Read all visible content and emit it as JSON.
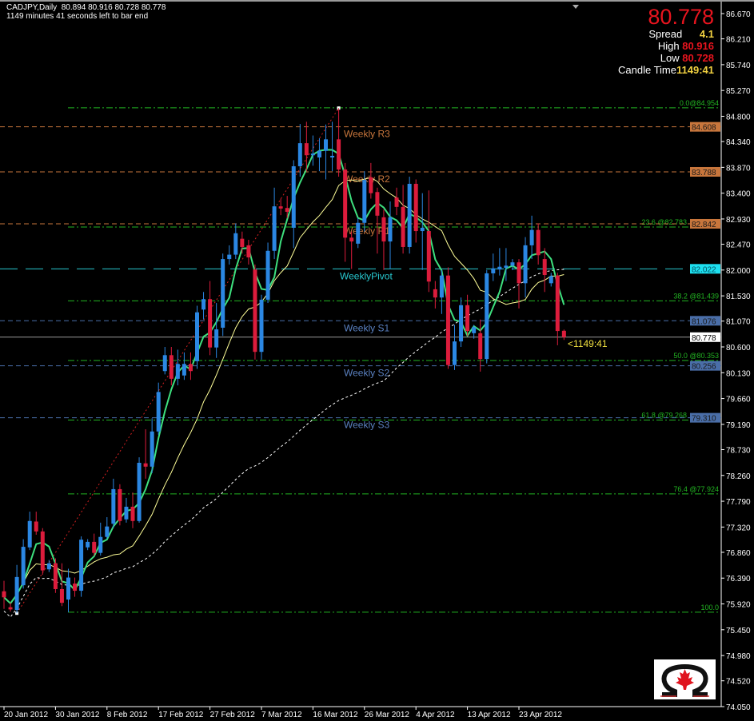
{
  "header": {
    "symbol_line": "CADJPY,Daily  80.894 80.916 80.728 80.778",
    "timer_line": "1149 minutes 41 seconds left to bar end"
  },
  "info_panel": {
    "price": "80.778",
    "spread_label": "Spread",
    "spread_value": "4.1",
    "high_label": "High",
    "high_value": "80.916",
    "low_label": "Low",
    "low_value": "80.728",
    "candle_time_label": "Candle Time",
    "candle_time_value": "1149:41"
  },
  "countdown_label": "<1149:41",
  "colors": {
    "bull": "#2b87e3",
    "bear": "#dc1c3c",
    "ma_fast": "#3ee07e",
    "ma_mid": "#ffff99",
    "ma_slow": "#ffffff",
    "fib": "#22b422",
    "resistance": "#c8763c",
    "pivot": "#28c8d0",
    "support": "#4a6ea8",
    "price_line": "#9a9a9a"
  },
  "logo": {
    "icon": "omega-maple-leaf-logo"
  },
  "chart_data": {
    "type": "candlestick",
    "title": "CADJPY,Daily",
    "ylim": [
      74.05,
      86.67
    ],
    "y_ticks": [
      "86.670",
      "86.210",
      "85.740",
      "85.270",
      "84.800",
      "84.340",
      "83.870",
      "83.400",
      "82.930",
      "82.470",
      "82.000",
      "81.530",
      "81.070",
      "80.600",
      "80.130",
      "79.660",
      "79.190",
      "78.730",
      "78.260",
      "77.790",
      "77.320",
      "76.860",
      "76.390",
      "75.920",
      "75.450",
      "74.980",
      "74.520",
      "74.050"
    ],
    "x_ticks": [
      {
        "label": "20 Jan 2012",
        "bar": 0
      },
      {
        "label": "30 Jan 2012",
        "bar": 8
      },
      {
        "label": "8 Feb 2012",
        "bar": 16
      },
      {
        "label": "17 Feb 2012",
        "bar": 24
      },
      {
        "label": "27 Feb 2012",
        "bar": 32
      },
      {
        "label": "7 Mar 2012",
        "bar": 40
      },
      {
        "label": "16 Mar 2012",
        "bar": 48
      },
      {
        "label": "26 Mar 2012",
        "bar": 56
      },
      {
        "label": "4 Apr 2012",
        "bar": 64
      },
      {
        "label": "13 Apr 2012",
        "bar": 72
      },
      {
        "label": "23 Apr 2012",
        "bar": 80
      }
    ],
    "ohlc": [
      [
        76.15,
        76.34,
        75.83,
        76.04
      ],
      [
        75.86,
        75.95,
        75.78,
        75.82
      ],
      [
        75.81,
        76.63,
        75.75,
        76.41
      ],
      [
        76.26,
        77.1,
        76.2,
        76.96
      ],
      [
        76.95,
        77.6,
        76.9,
        77.43
      ],
      [
        77.42,
        77.6,
        77.18,
        77.24
      ],
      [
        77.24,
        77.3,
        76.45,
        76.53
      ],
      [
        76.55,
        76.72,
        76.5,
        76.66
      ],
      [
        76.66,
        76.75,
        76.12,
        76.19
      ],
      [
        76.19,
        76.66,
        75.88,
        75.94
      ],
      [
        76.0,
        76.56,
        75.77,
        76.4
      ],
      [
        76.29,
        76.4,
        76.05,
        76.16
      ],
      [
        76.16,
        77.15,
        76.05,
        77.09
      ],
      [
        76.95,
        77.1,
        76.9,
        77.05
      ],
      [
        77.05,
        77.2,
        76.8,
        76.85
      ],
      [
        76.85,
        77.4,
        76.8,
        77.14
      ],
      [
        77.14,
        77.5,
        77.1,
        77.33
      ],
      [
        77.38,
        78.2,
        77.3,
        78.01
      ],
      [
        78.01,
        78.1,
        77.35,
        77.43
      ],
      [
        77.46,
        77.85,
        77.4,
        77.69
      ],
      [
        77.69,
        77.95,
        77.3,
        77.43
      ],
      [
        77.43,
        78.59,
        77.4,
        78.49
      ],
      [
        78.48,
        79.1,
        78.2,
        78.42
      ],
      [
        78.42,
        79.3,
        78.3,
        79.06
      ],
      [
        79.06,
        79.95,
        79.0,
        79.78
      ],
      [
        80.16,
        80.6,
        80.1,
        80.45
      ],
      [
        80.45,
        80.6,
        79.9,
        80.02
      ],
      [
        80.02,
        80.55,
        79.9,
        80.29
      ],
      [
        80.08,
        80.5,
        80.0,
        80.29
      ],
      [
        80.29,
        80.5,
        80.0,
        80.16
      ],
      [
        80.34,
        81.35,
        80.2,
        81.23
      ],
      [
        81.28,
        81.6,
        81.1,
        81.47
      ],
      [
        81.47,
        81.8,
        80.45,
        80.59
      ],
      [
        80.59,
        81.4,
        80.4,
        80.92
      ],
      [
        80.95,
        82.3,
        80.8,
        82.2
      ],
      [
        82.2,
        82.45,
        82.1,
        82.28
      ],
      [
        82.28,
        82.85,
        82.2,
        82.67
      ],
      [
        82.57,
        82.7,
        82.3,
        82.42
      ],
      [
        82.45,
        82.55,
        82.1,
        82.23
      ],
      [
        82.01,
        82.1,
        80.37,
        80.51
      ],
      [
        80.51,
        81.55,
        80.37,
        81.46
      ],
      [
        81.46,
        82.5,
        81.4,
        82.35
      ],
      [
        82.35,
        83.5,
        82.2,
        83.16
      ],
      [
        83.16,
        83.3,
        83.0,
        83.12
      ],
      [
        83.13,
        83.35,
        82.95,
        83.06
      ],
      [
        82.77,
        84.0,
        82.4,
        83.89
      ],
      [
        83.89,
        84.66,
        83.7,
        84.31
      ],
      [
        84.31,
        84.7,
        83.8,
        84.09
      ],
      [
        84.09,
        84.45,
        83.9,
        84.12
      ],
      [
        84.05,
        84.4,
        83.8,
        84.17
      ],
      [
        84.17,
        84.65,
        83.65,
        84.38
      ],
      [
        84.05,
        84.7,
        83.8,
        84.08
      ],
      [
        84.38,
        84.95,
        83.7,
        83.83
      ],
      [
        83.83,
        83.95,
        82.15,
        82.59
      ],
      [
        82.59,
        82.7,
        82.02,
        82.52
      ],
      [
        82.48,
        82.95,
        82.4,
        82.86
      ],
      [
        82.86,
        83.8,
        82.7,
        83.64
      ],
      [
        83.69,
        83.95,
        83.3,
        83.4
      ],
      [
        83.42,
        83.5,
        82.3,
        82.99
      ],
      [
        82.96,
        83.1,
        82.0,
        82.52
      ],
      [
        82.52,
        83.25,
        82.02,
        82.96
      ],
      [
        83.32,
        83.5,
        83.0,
        83.15
      ],
      [
        83.15,
        83.55,
        82.3,
        82.42
      ],
      [
        82.42,
        83.7,
        82.3,
        83.57
      ],
      [
        83.57,
        83.65,
        82.5,
        82.71
      ],
      [
        82.71,
        83.4,
        82.0,
        82.77
      ],
      [
        82.71,
        83.45,
        81.6,
        81.79
      ],
      [
        81.65,
        81.8,
        81.3,
        81.5
      ],
      [
        81.5,
        82.0,
        81.2,
        81.9
      ],
      [
        81.9,
        82.05,
        80.2,
        80.27
      ],
      [
        80.27,
        81.0,
        80.18,
        80.7
      ],
      [
        80.7,
        81.5,
        80.6,
        81.36
      ],
      [
        81.36,
        81.55,
        80.8,
        80.89
      ],
      [
        80.85,
        81.0,
        80.75,
        80.96
      ],
      [
        80.85,
        81.1,
        80.15,
        80.38
      ],
      [
        80.38,
        82.0,
        80.3,
        81.94
      ],
      [
        81.94,
        82.3,
        81.8,
        82.03
      ],
      [
        82.01,
        82.4,
        81.9,
        82.06
      ],
      [
        82.04,
        82.4,
        81.8,
        82.08
      ],
      [
        82.08,
        82.2,
        82.0,
        82.14
      ],
      [
        82.14,
        82.2,
        81.3,
        81.76
      ],
      [
        81.76,
        82.6,
        81.5,
        82.45
      ],
      [
        82.45,
        82.99,
        82.2,
        82.73
      ],
      [
        82.73,
        82.85,
        82.1,
        82.27
      ],
      [
        82.2,
        82.4,
        81.6,
        81.91
      ],
      [
        81.76,
        81.95,
        81.7,
        81.89
      ],
      [
        81.9,
        81.95,
        80.63,
        80.89
      ],
      [
        80.894,
        80.916,
        80.728,
        80.778
      ]
    ],
    "pivot_levels": [
      {
        "name": "Weekly R3",
        "label": "Weekly R3",
        "value": 84.608,
        "axis_label": "84.608",
        "kind": "resistance"
      },
      {
        "name": "Weekly R2",
        "label": "Weekly R2",
        "value": 83.788,
        "axis_label": "83.788",
        "kind": "resistance"
      },
      {
        "name": "Weekly R1",
        "label": "Weekly R1",
        "value": 82.842,
        "axis_label": "82.842",
        "kind": "resistance"
      },
      {
        "name": "Weekly Pivot",
        "label": "WeeklyPivot",
        "value": 82.022,
        "axis_label": "82.022",
        "kind": "pivot"
      },
      {
        "name": "Weekly S1",
        "label": "Weekly S1",
        "value": 81.076,
        "axis_label": "81.076",
        "kind": "support"
      },
      {
        "name": "Weekly S2",
        "label": "Weekly S2",
        "value": 80.256,
        "axis_label": "80.256",
        "kind": "support"
      },
      {
        "name": "Weekly S3",
        "label": "Weekly S3",
        "value": 79.31,
        "axis_label": "79.310",
        "kind": "support"
      }
    ],
    "fib_levels": [
      {
        "label": "0.0@84.954",
        "value": 84.954
      },
      {
        "label": "23.6 @82.783",
        "value": 82.783
      },
      {
        "label": "38.2 @81.439",
        "value": 81.439
      },
      {
        "label": "50.0 @80.353",
        "value": 80.353
      },
      {
        "label": "61.8 @79.268",
        "value": 79.268
      },
      {
        "label": "76.4 @77.924",
        "value": 77.924
      },
      {
        "label": "100.0",
        "value": 75.77
      }
    ],
    "current_price": {
      "value": 80.778,
      "axis_label": "80.778"
    }
  }
}
